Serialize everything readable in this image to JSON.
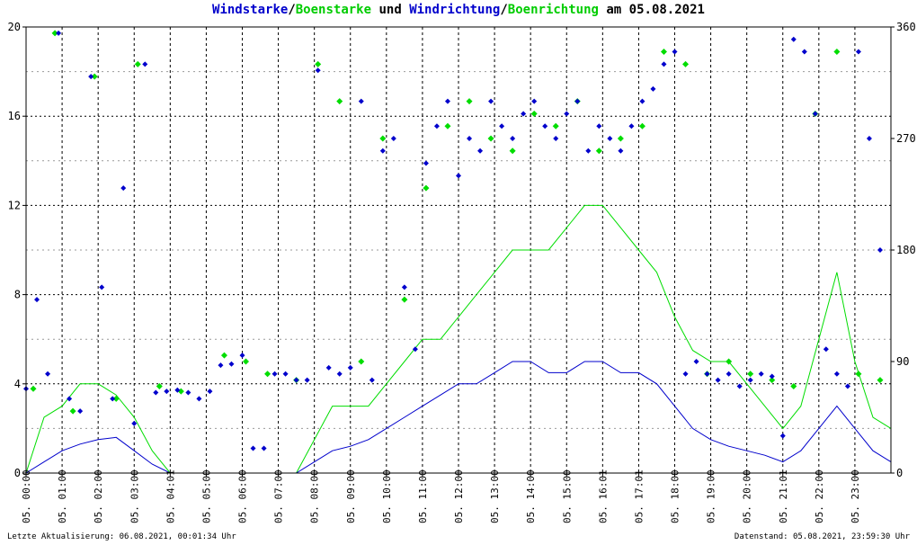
{
  "title": {
    "part1": "Windstarke",
    "sep1": "/",
    "part2": "Boenstarke",
    "part3": " und ",
    "part4": "Windrichtung",
    "sep2": "/",
    "part5": "Boenrichtung",
    "part6": " am 05.08.2021"
  },
  "footer": {
    "left": "Letzte Aktualisierung: 06.08.2021, 00:01:34 Uhr",
    "right": "Datenstand: 05.08.2021, 23:59:30 Uhr"
  },
  "colors": {
    "wind": "#0000cc",
    "gust": "#00dd00",
    "grid": "#000000",
    "background": "#ffffff"
  },
  "chart_data": {
    "type": "line",
    "x_range_hours": [
      0,
      24
    ],
    "left_axis": {
      "ylim": [
        0,
        20
      ],
      "ticks": [
        "0",
        "4",
        "8",
        "12",
        "16",
        "20"
      ]
    },
    "right_axis": {
      "ylim": [
        0,
        360
      ],
      "ticks": [
        "0",
        "90",
        "180",
        "270",
        "360"
      ]
    },
    "x_tick_labels": [
      "05. 00:00",
      "05. 01:00",
      "05. 02:00",
      "05. 03:00",
      "05. 04:01",
      "05. 05:00",
      "05. 06:00",
      "05. 07:00",
      "05. 08:00",
      "05. 09:00",
      "05. 10:00",
      "05. 11:00",
      "05. 12:00",
      "05. 13:00",
      "05. 14:00",
      "05. 15:00",
      "05. 16:01",
      "05. 17:01",
      "05. 18:00",
      "05. 19:00",
      "05. 20:00",
      "05. 21:01",
      "05. 22:00",
      "05. 23:00"
    ],
    "grid": true,
    "series": [
      {
        "name": "Windstarke",
        "axis": "left",
        "style": "line",
        "color": "#0000cc",
        "x": [
          0,
          0.5,
          1,
          1.5,
          2,
          2.5,
          3,
          3.5,
          4,
          4.5,
          5,
          5.5,
          6,
          6.5,
          7,
          7.5,
          8,
          8.5,
          9,
          9.5,
          10,
          10.5,
          11,
          11.5,
          12,
          12.5,
          13,
          13.5,
          14,
          14.5,
          15,
          15.5,
          16,
          16.5,
          17,
          17.5,
          18,
          18.5,
          19,
          19.5,
          20,
          20.5,
          21,
          21.5,
          22,
          22.5,
          23,
          23.5,
          24
        ],
        "values": [
          0,
          0.5,
          1,
          1.3,
          1.5,
          1.6,
          1,
          0.4,
          0,
          0,
          0,
          0,
          0,
          0,
          0,
          0,
          0.5,
          1,
          1.2,
          1.5,
          2,
          2.5,
          3,
          3.5,
          4,
          4,
          4.5,
          5,
          5,
          4.5,
          4.5,
          5,
          5,
          4.5,
          4.5,
          4,
          3,
          2,
          1.5,
          1.2,
          1,
          0.8,
          0.5,
          1,
          2,
          3,
          2,
          1,
          0.5
        ]
      },
      {
        "name": "Boenstarke",
        "axis": "left",
        "style": "line",
        "color": "#00dd00",
        "x": [
          0,
          0.5,
          1,
          1.5,
          2,
          2.5,
          3,
          3.5,
          4,
          4.5,
          5,
          5.5,
          6,
          6.5,
          7,
          7.5,
          8,
          8.5,
          9,
          9.5,
          10,
          10.5,
          11,
          11.5,
          12,
          12.5,
          13,
          13.5,
          14,
          14.5,
          15,
          15.5,
          16,
          16.5,
          17,
          17.5,
          18,
          18.5,
          19,
          19.5,
          20,
          20.5,
          21,
          21.5,
          22,
          22.5,
          23,
          23.5,
          24
        ],
        "values": [
          0,
          2.5,
          3,
          4,
          4,
          3.5,
          2.5,
          1,
          0,
          0,
          0,
          0,
          0,
          0,
          0,
          0,
          1.5,
          3,
          3,
          3,
          4,
          5,
          6,
          6,
          7,
          8,
          9,
          10,
          10,
          10,
          11,
          12,
          12,
          11,
          10,
          9,
          7,
          5.5,
          5,
          5,
          4,
          3,
          2,
          3,
          6,
          9,
          5,
          2.5,
          2
        ]
      },
      {
        "name": "Windrichtung",
        "axis": "right",
        "style": "points",
        "color": "#0000cc",
        "x": [
          0,
          0.3,
          0.6,
          0.9,
          1.2,
          1.5,
          1.8,
          2.1,
          2.4,
          2.7,
          3.0,
          3.3,
          3.6,
          3.9,
          4.2,
          4.5,
          4.8,
          5.1,
          5.4,
          5.7,
          6.0,
          6.3,
          6.6,
          6.9,
          7.2,
          7.5,
          7.8,
          8.1,
          8.4,
          8.7,
          9.0,
          9.3,
          9.6,
          9.9,
          10.2,
          10.5,
          10.8,
          11.1,
          11.4,
          11.7,
          12.0,
          12.3,
          12.6,
          12.9,
          13.2,
          13.5,
          13.8,
          14.1,
          14.4,
          14.7,
          15.0,
          15.3,
          15.6,
          15.9,
          16.2,
          16.5,
          16.8,
          17.1,
          17.4,
          17.7,
          18.0,
          18.3,
          18.6,
          18.9,
          19.2,
          19.5,
          19.8,
          20.1,
          20.4,
          20.7,
          21.0,
          21.3,
          21.6,
          21.9,
          22.2,
          22.5,
          22.8,
          23.1,
          23.4,
          23.7
        ],
        "values": [
          68,
          140,
          80,
          355,
          60,
          50,
          320,
          150,
          60,
          230,
          40,
          330,
          65,
          66,
          67,
          65,
          60,
          66,
          87,
          88,
          95,
          20,
          20,
          80,
          80,
          75,
          75,
          325,
          85,
          80,
          85,
          300,
          75,
          260,
          270,
          150,
          100,
          250,
          280,
          300,
          240,
          270,
          260,
          300,
          280,
          270,
          290,
          300,
          280,
          270,
          290,
          300,
          260,
          280,
          270,
          260,
          280,
          300,
          310,
          330,
          340,
          80,
          90,
          80,
          75,
          80,
          70,
          75,
          80,
          78,
          30,
          350,
          340,
          290,
          100,
          80,
          70,
          340,
          270,
          180
        ]
      },
      {
        "name": "Boenrichtung",
        "axis": "right",
        "style": "points",
        "color": "#00dd00",
        "x": [
          0.2,
          0.8,
          1.3,
          1.9,
          2.5,
          3.1,
          3.7,
          4.3,
          5.5,
          6.1,
          6.7,
          7.5,
          8.1,
          8.7,
          9.3,
          9.9,
          10.5,
          11.1,
          11.7,
          12.3,
          12.9,
          13.5,
          14.1,
          14.7,
          15.3,
          15.9,
          16.5,
          17.1,
          17.7,
          18.3,
          18.9,
          19.5,
          20.1,
          20.7,
          21.3,
          21.9,
          22.5,
          23.1,
          23.7
        ],
        "values": [
          68,
          355,
          50,
          320,
          60,
          330,
          70,
          66,
          95,
          90,
          80,
          75,
          330,
          300,
          90,
          270,
          140,
          230,
          280,
          300,
          270,
          260,
          290,
          280,
          300,
          260,
          270,
          280,
          340,
          330,
          80,
          90,
          80,
          75,
          70,
          290,
          340,
          80,
          75
        ]
      }
    ]
  }
}
